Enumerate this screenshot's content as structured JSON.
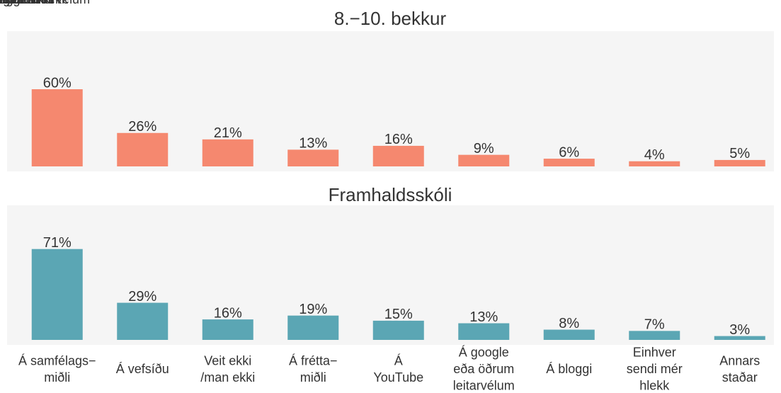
{
  "chart_data": [
    {
      "type": "bar",
      "title": "8.−10. bekkur",
      "color": "#f5886f",
      "values": [
        60,
        26,
        21,
        13,
        16,
        9,
        6,
        4,
        5
      ],
      "value_labels": [
        "60%",
        "26%",
        "21%",
        "13%",
        "16%",
        "9%",
        "6%",
        "4%",
        "5%"
      ],
      "ylim": [
        -4,
        105
      ]
    },
    {
      "type": "bar",
      "title": "Framhaldsskóli",
      "color": "#5ba6b4",
      "categories": [
        "Á samfélags−\nmiðli",
        "Á vefsíðu",
        "Veit ekki\n/man ekki",
        "Á frétta−\nmiðli",
        "Á\nYouTube",
        "Á google\neða öðrum\nleitarvélum",
        "Á bloggi",
        "Einhver\nsendi mér\nhlekk",
        "Annars\nstaðar"
      ],
      "values": [
        71,
        29,
        16,
        19,
        15,
        13,
        8,
        7,
        3
      ],
      "value_labels": [
        "71%",
        "29%",
        "16%",
        "19%",
        "15%",
        "13%",
        "8%",
        "7%",
        "3%"
      ],
      "ylim": [
        -4,
        105
      ]
    }
  ]
}
